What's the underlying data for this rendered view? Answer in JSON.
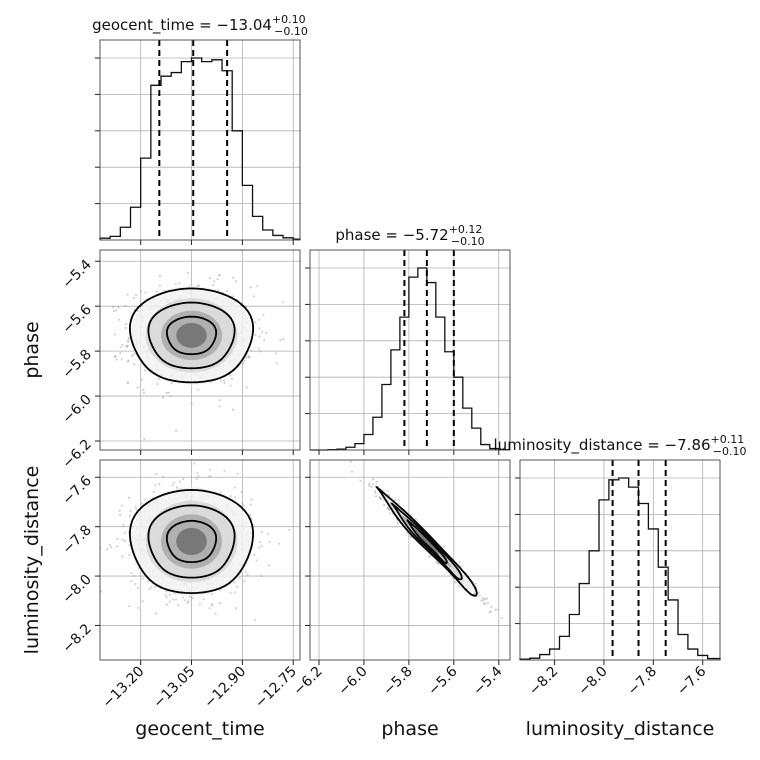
{
  "chart_data": {
    "type": "corner",
    "parameters": [
      "geocent_time",
      "phase",
      "luminosity_distance"
    ],
    "ranges": {
      "geocent_time": [
        -13.32,
        -12.73
      ],
      "phase": [
        -6.24,
        -5.35
      ],
      "luminosity_distance": [
        -8.34,
        -7.53
      ]
    },
    "ticks": {
      "geocent_time": [
        "-13.20",
        "-13.05",
        "-12.90",
        "-12.75"
      ],
      "phase": [
        "-6.2",
        "-6.0",
        "-5.8",
        "-5.6",
        "-5.4"
      ],
      "luminosity_distance": [
        "-8.2",
        "-8.0",
        "-7.8",
        "-7.6"
      ]
    },
    "grid": true,
    "diagonal": [
      {
        "parameter": "geocent_time",
        "title_prefix": "geocent_time = ",
        "median": "−13.04",
        "plus": "+0.10",
        "minus": "−0.10",
        "quantiles": [
          -13.145,
          -13.045,
          -12.945
        ],
        "bin_edges": [
          -13.32,
          -13.29,
          -13.26,
          -13.23,
          -13.2,
          -13.17,
          -13.14,
          -13.11,
          -13.08,
          -13.05,
          -13.02,
          -12.99,
          -12.96,
          -12.93,
          -12.9,
          -12.87,
          -12.84,
          -12.81,
          -12.78,
          -12.75,
          -12.73
        ],
        "counts": [
          10,
          20,
          70,
          180,
          450,
          850,
          900,
          920,
          980,
          1000,
          980,
          990,
          930,
          600,
          300,
          130,
          55,
          25,
          12,
          5
        ]
      },
      {
        "parameter": "phase",
        "title_prefix": "phase = ",
        "median": "−5.72",
        "plus": "+0.12",
        "minus": "−0.10",
        "quantiles": [
          -5.82,
          -5.72,
          -5.6
        ],
        "bin_edges": [
          -6.24,
          -6.2,
          -6.16,
          -6.12,
          -6.08,
          -6.04,
          -6.0,
          -5.96,
          -5.92,
          -5.88,
          -5.84,
          -5.8,
          -5.76,
          -5.72,
          -5.68,
          -5.64,
          -5.6,
          -5.56,
          -5.52,
          -5.48,
          -5.44,
          -5.4,
          -5.35
        ],
        "counts": [
          0,
          0,
          2,
          5,
          15,
          35,
          85,
          180,
          360,
          550,
          730,
          950,
          1000,
          920,
          730,
          540,
          400,
          230,
          120,
          30,
          8,
          2
        ]
      },
      {
        "parameter": "luminosity_distance",
        "title_prefix": "luminosity_distance = ",
        "median": "−7.86",
        "plus": "+0.11",
        "minus": "−0.10",
        "quantiles": [
          -7.965,
          -7.86,
          -7.75
        ],
        "bin_edges": [
          -8.34,
          -8.3,
          -8.26,
          -8.22,
          -8.18,
          -8.14,
          -8.1,
          -8.06,
          -8.02,
          -7.98,
          -7.94,
          -7.9,
          -7.86,
          -7.82,
          -7.78,
          -7.74,
          -7.7,
          -7.66,
          -7.62,
          -7.58,
          -7.53
        ],
        "counts": [
          5,
          10,
          30,
          60,
          130,
          250,
          420,
          600,
          880,
          990,
          1000,
          950,
          860,
          720,
          510,
          330,
          140,
          60,
          25,
          8
        ]
      }
    ],
    "pairs": [
      {
        "x": "geocent_time",
        "y": "phase",
        "center": [
          -13.05,
          -5.73
        ],
        "sigma": [
          0.09,
          0.11
        ],
        "corr": 0.0,
        "scatter_points": 900
      },
      {
        "x": "geocent_time",
        "y": "luminosity_distance",
        "center": [
          -13.05,
          -7.86
        ],
        "sigma": [
          0.09,
          0.11
        ],
        "corr": 0.0,
        "scatter_points": 900
      },
      {
        "x": "phase",
        "y": "luminosity_distance",
        "center": [
          -5.72,
          -7.86
        ],
        "sigma": [
          0.11,
          0.105
        ],
        "corr": -0.985,
        "scatter_points": 700
      }
    ]
  }
}
